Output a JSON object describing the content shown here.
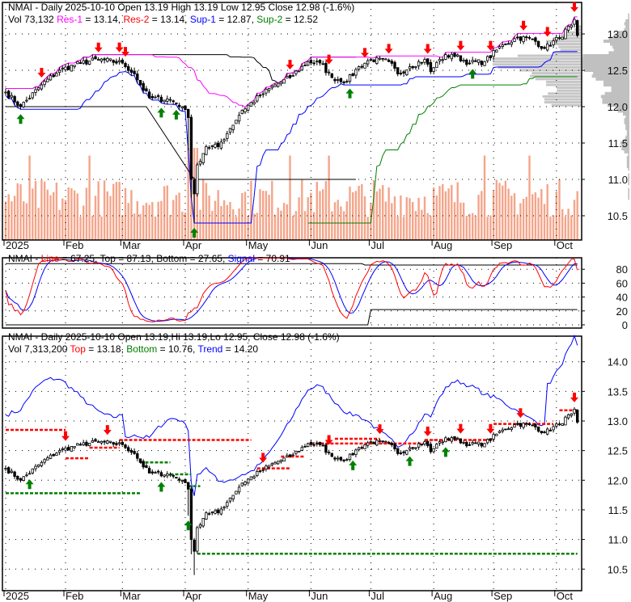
{
  "chart_data": [
    {
      "type": "candlestick",
      "panel": "price",
      "header": {
        "line1": "NMAI - Daily 2025-10-10 Open 13.19  High 13.19  Low 12.95  Close 12.98 (-1.6%)",
        "vol": "Vol 73,132 ",
        "res1_label": "Res-1",
        "res1_value": " = 13.14, ",
        "res2_label": "Res-2",
        "res2_value": " = 13.14, ",
        "sup1_label": "Sup-1",
        "sup1_value": " = 12.87, ",
        "sup2_label": "Sup-2",
        "sup2_value": " = 12.52"
      },
      "yticks": [
        "13.0",
        "12.5",
        "12.0",
        "11.5",
        "11.0",
        "10.5"
      ],
      "ylim": [
        10.3,
        13.45
      ],
      "close_keypoints": [
        [
          0,
          12.2
        ],
        [
          5,
          12.0
        ],
        [
          12,
          12.3
        ],
        [
          18,
          12.5
        ],
        [
          25,
          12.6
        ],
        [
          31,
          12.65
        ],
        [
          39,
          12.6
        ],
        [
          43,
          12.45
        ],
        [
          45,
          12.3
        ],
        [
          48,
          12.12
        ],
        [
          55,
          12.1
        ],
        [
          59,
          12.0
        ],
        [
          61,
          11.85
        ],
        [
          62,
          11.0
        ],
        [
          63,
          10.8
        ],
        [
          64,
          11.2
        ],
        [
          67,
          11.45
        ],
        [
          71,
          11.45
        ],
        [
          75,
          11.7
        ],
        [
          79,
          11.95
        ],
        [
          85,
          12.15
        ],
        [
          90,
          12.3
        ],
        [
          95,
          12.4
        ],
        [
          101,
          12.62
        ],
        [
          105,
          12.6
        ],
        [
          109,
          12.4
        ],
        [
          114,
          12.35
        ],
        [
          118,
          12.55
        ],
        [
          122,
          12.65
        ],
        [
          128,
          12.62
        ],
        [
          131,
          12.45
        ],
        [
          135,
          12.55
        ],
        [
          140,
          12.65
        ],
        [
          142,
          12.48
        ],
        [
          145,
          12.65
        ],
        [
          149,
          12.72
        ],
        [
          155,
          12.6
        ],
        [
          160,
          12.62
        ],
        [
          166,
          12.85
        ],
        [
          171,
          12.95
        ],
        [
          176,
          12.93
        ],
        [
          180,
          12.8
        ],
        [
          185,
          12.95
        ],
        [
          189,
          13.12
        ],
        [
          190,
          13.2
        ],
        [
          191,
          12.98
        ]
      ],
      "days": 192,
      "sell_signals": [
        12,
        31,
        38,
        40,
        95,
        108,
        120,
        128,
        141,
        152,
        162,
        173,
        181,
        190
      ],
      "buy_signals": [
        5,
        52,
        57,
        63,
        115,
        156
      ],
      "colors": {
        "res1": "#ff00ff",
        "res2": "#ff0000",
        "sup1": "#0000ff",
        "sup2": "#008000",
        "volume": "#f4a58a",
        "profile": "#c0c0c0"
      }
    },
    {
      "type": "line",
      "panel": "stochastic",
      "header": {
        "prefix": "NMAI - ",
        "line_label": "Line",
        "line_value": " = 67.25, Top = 87.13, Bottom = 27.65, ",
        "signal_label": "Signal",
        "signal_value": " = 70.91"
      },
      "yticks": [
        "80",
        "60",
        "40",
        "20",
        "0"
      ],
      "ylim": [
        0,
        100
      ],
      "last": {
        "line": 67.25,
        "top": 87.13,
        "bottom": 27.65,
        "signal": 70.91
      }
    },
    {
      "type": "candlestick",
      "panel": "trend",
      "header": {
        "line1": "NMAI - Daily 2025-10-10 Open 13.19,Hi 13.19,Lo 12.95, Close 12.98 (-1.6%)",
        "vol": "Vol 7,313,200 ",
        "top_label": "Top",
        "top_value": " = 13.18, ",
        "bottom_label": "Bottom",
        "bottom_value": " = 10.76, ",
        "trend_label": "Trend",
        "trend_value": " = 14.20"
      },
      "yticks": [
        "14.0",
        "13.5",
        "13.0",
        "12.5",
        "12.0",
        "11.5",
        "11.0",
        "10.5"
      ],
      "ylim": [
        10.1,
        14.45
      ],
      "sell_signals": [
        20,
        34,
        86,
        108,
        125,
        141,
        152,
        162,
        172,
        190
      ],
      "buy_signals": [
        8,
        52,
        61,
        116,
        135,
        147
      ]
    }
  ],
  "xaxis": {
    "labels": [
      "2025",
      "Feb",
      "Mar",
      "Apr",
      "May",
      "Jun",
      "Jul",
      "Aug",
      "Sep",
      "Oct"
    ],
    "day_index": [
      0,
      20,
      39,
      60,
      81,
      102,
      122,
      143,
      163,
      184
    ]
  }
}
